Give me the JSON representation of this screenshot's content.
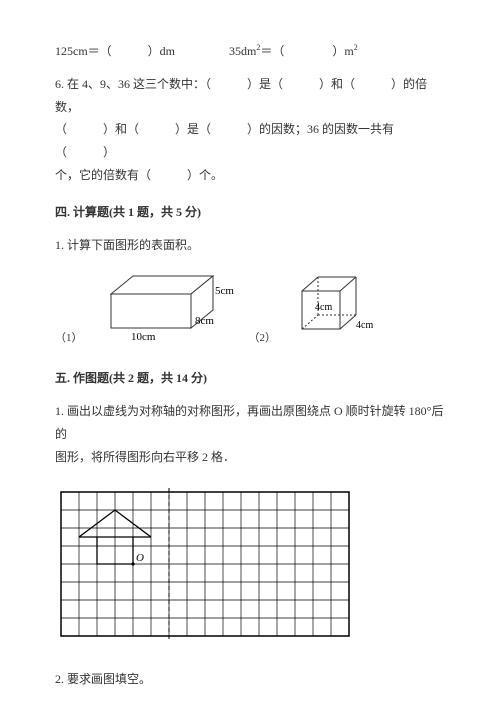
{
  "q5": {
    "part1": "125cm＝（　　　）dm",
    "part2": "35dm",
    "part2_exp": "2",
    "part3": "＝（　　　　）m",
    "part3_exp": "2"
  },
  "q6": {
    "line1": "6. 在 4、9、36 这三个数中：（　　　）是（　　　）和（　　　）的倍数，",
    "line2": "（　　　）和（　　　）是（　　　）的因数；36 的因数一共有（　　　）",
    "line3": "个，它的倍数有（　　　）个。"
  },
  "section4": {
    "title": "四. 计算题(共 1 题，共 5 分)",
    "q1": "1. 计算下面图形的表面积。"
  },
  "cuboid": {
    "index": "（1）",
    "length": "10cm",
    "width": "8cm",
    "height": "5cm",
    "stroke": "#333333",
    "fill": "#ffffff",
    "label_fontsize": 11
  },
  "cube": {
    "index": "（2）",
    "edge1": "4cm",
    "edge2": "4cm",
    "stroke": "#333333",
    "label_fontsize": 10
  },
  "section5": {
    "title": "五. 作图题(共 2 题，共 14 分)",
    "q1a": "1. 画出以虚线为对称轴的对称图形，再画出原图绕点 O 顺时针旋转 180°后的",
    "q1b": "图形，将所得图形向右平移 2 格．",
    "q2": "2. 要求画图填空。"
  },
  "grid": {
    "cols": 16,
    "rows": 8,
    "cell": 18,
    "stroke": "#000000",
    "dash_col": 6,
    "shape": {
      "roof": [
        [
          1,
          2.5
        ],
        [
          3,
          1
        ],
        [
          5,
          2.5
        ]
      ],
      "walls": [
        [
          2,
          2.5
        ],
        [
          2,
          4
        ],
        [
          4,
          4
        ],
        [
          4,
          2.5
        ]
      ],
      "base": [
        [
          1,
          2.5
        ],
        [
          5,
          2.5
        ]
      ],
      "O_pos": [
        4,
        4
      ],
      "O_label": "O"
    }
  }
}
